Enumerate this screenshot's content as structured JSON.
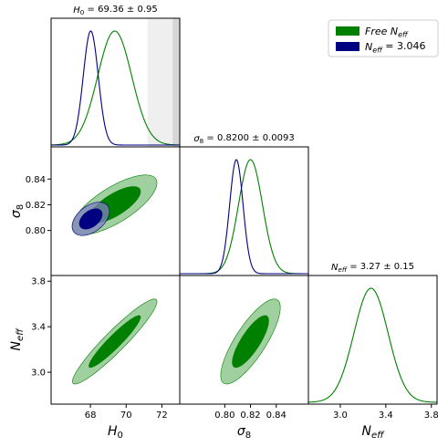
{
  "chart_data": {
    "type": "triangle-corner-plot",
    "parameters": [
      {
        "id": "H0",
        "label_base": "H",
        "label_sub": "0",
        "range": [
          65.8,
          73.0
        ],
        "ticks": [
          68,
          70,
          72
        ]
      },
      {
        "id": "sigma8",
        "label_base": "σ",
        "label_sub": "8",
        "range": [
          0.765,
          0.865
        ],
        "ticks": [
          0.8,
          0.82,
          0.84
        ]
      },
      {
        "id": "Neff",
        "label_base": "N",
        "label_sub": "eff",
        "range": [
          2.72,
          3.85
        ],
        "ticks": [
          3.0,
          3.4,
          3.8
        ]
      }
    ],
    "panel_titles": {
      "H0": {
        "base": "H",
        "sub": "0",
        "text": "= 69.36 ± 0.95"
      },
      "sigma8": {
        "base": "σ",
        "sub": "8",
        "text": "= 0.8200 ± 0.0093"
      },
      "Neff": {
        "base": "N",
        "sub": "eff",
        "text": "= 3.27 ± 0.15"
      }
    },
    "series": [
      {
        "name_base": "Free N",
        "name_sub": "eff",
        "name_suffix": "",
        "color": "#008000",
        "inner_fill": "#008000",
        "outer_fill": "#80c080",
        "mean": {
          "H0": 69.36,
          "sigma8": 0.82,
          "Neff": 3.27
        },
        "sd": {
          "H0": 0.95,
          "sigma8": 0.0093,
          "Neff": 0.15
        },
        "corr": {
          "H0|sigma8": 0.73,
          "H0|Neff": 0.94,
          "sigma8|Neff": 0.8
        },
        "panels": [
          "H0",
          "sigma8",
          "Neff"
        ]
      },
      {
        "name_base": "N",
        "name_sub": "eff",
        "name_suffix": " = 3.046",
        "color": "#000080",
        "inner_fill": "#000080",
        "outer_fill": "#8080c0",
        "mean": {
          "H0": 68.02,
          "sigma8": 0.809
        },
        "sd": {
          "H0": 0.42,
          "sigma8": 0.0052
        },
        "corr": {
          "H0|sigma8": 0.45
        },
        "panels": [
          "H0",
          "sigma8"
        ]
      }
    ],
    "shaded_bands": [
      {
        "param": "H0",
        "range": [
          71.2,
          72.6
        ],
        "color": "#efefef"
      },
      {
        "param": "H0",
        "range": [
          72.6,
          73.0
        ],
        "color": "#d6d6d6"
      }
    ],
    "legend_position": "top-right"
  }
}
